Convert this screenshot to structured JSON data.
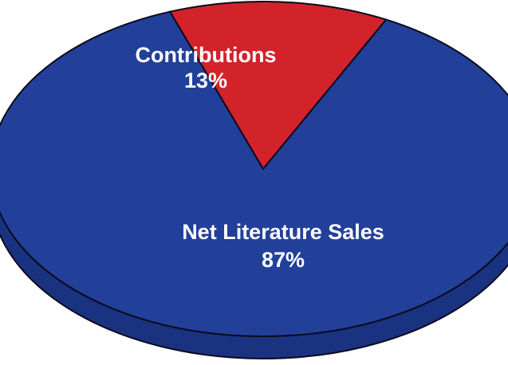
{
  "chart_data": {
    "type": "pie",
    "title": "",
    "style": "3d-tilted",
    "start_angle_deg": -20,
    "slices": [
      {
        "label": "Contributions",
        "percent_label": "13%",
        "value": 13,
        "color": "#d2232a"
      },
      {
        "label": "Net Literature Sales",
        "percent_label": "87%",
        "value": 87,
        "color": "#22409a"
      }
    ],
    "outline_color": "#0a0a1e"
  }
}
